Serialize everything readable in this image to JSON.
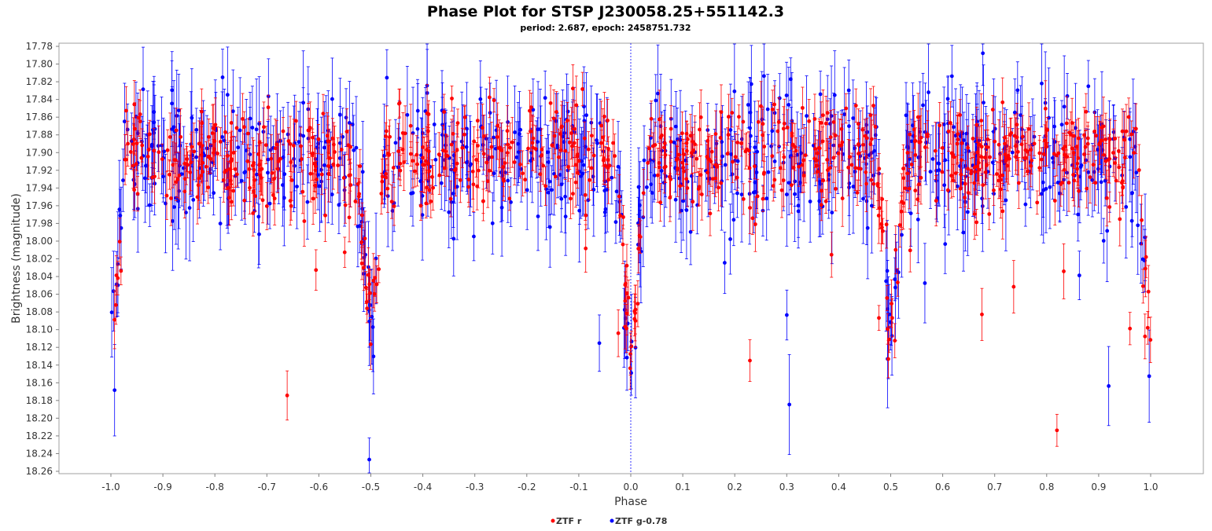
{
  "chart_data": {
    "type": "scatter",
    "title": "Phase Plot for STSP J230058.25+551142.3",
    "subtitle": "period: 2.687, epoch: 2458751.732",
    "xlabel": "Phase",
    "ylabel": "Brightness (magnitude)",
    "xlim": [
      -1.0,
      1.0
    ],
    "ylim": [
      18.26,
      17.78
    ],
    "y_inverted": true,
    "x_ticks": [
      "-1.0",
      "-0.9",
      "-0.8",
      "-0.7",
      "-0.6",
      "-0.5",
      "-0.4",
      "-0.3",
      "-0.2",
      "-0.1",
      "0.0",
      "0.1",
      "0.2",
      "0.3",
      "0.4",
      "0.5",
      "0.6",
      "0.7",
      "0.8",
      "0.9",
      "1.0"
    ],
    "y_ticks": [
      "17.78",
      "17.80",
      "17.82",
      "17.84",
      "17.86",
      "17.88",
      "17.90",
      "17.92",
      "17.94",
      "17.96",
      "17.98",
      "18.00",
      "18.02",
      "18.04",
      "18.06",
      "18.08",
      "18.10",
      "18.12",
      "18.14",
      "18.16",
      "18.18",
      "18.20",
      "18.22",
      "18.24",
      "18.26"
    ],
    "grid": false,
    "reference_line_x": 0.0,
    "legend_position": "bottom-center",
    "light_curve_model": {
      "baseline_mag": 17.905,
      "primary_eclipse": {
        "phase": 0.0,
        "depth": 0.22,
        "half_width": 0.03
      },
      "secondary_eclipse": {
        "phase": 0.5,
        "depth": 0.2,
        "half_width": 0.03
      },
      "scatter_mag": 0.03
    },
    "series": [
      {
        "name": "ZTF r",
        "color": "#ff0000",
        "points_per_phase_unit": 420,
        "typical_error": 0.022,
        "seed": 7
      },
      {
        "name": "ZTF g-0.78",
        "color": "#0000ff",
        "points_per_phase_unit": 340,
        "typical_error": 0.04,
        "seed": 13
      }
    ]
  }
}
